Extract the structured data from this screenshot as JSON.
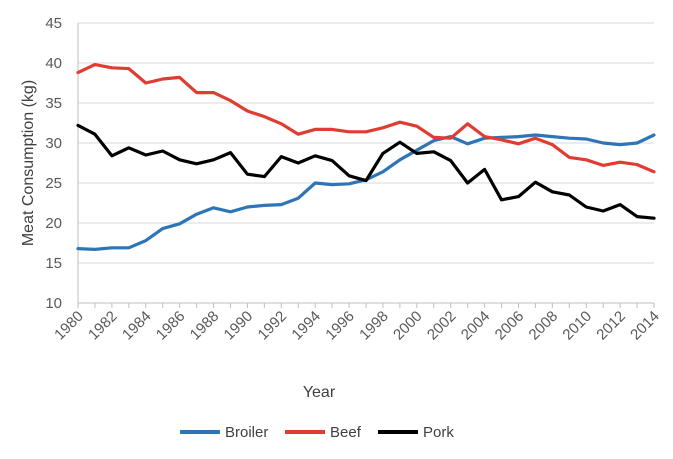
{
  "chart_data": {
    "type": "line",
    "title": "",
    "xlabel": "Year",
    "ylabel": "Meat Consumption (kg)",
    "ylim": [
      10,
      45
    ],
    "yticks": [
      "10",
      "15",
      "20",
      "25",
      "30",
      "35",
      "40",
      "45"
    ],
    "xticks": [
      "1980",
      "1982",
      "1984",
      "1986",
      "1988",
      "1990",
      "1992",
      "1994",
      "1996",
      "1998",
      "2000",
      "2002",
      "2004",
      "2006",
      "2008",
      "2010",
      "2012",
      "2014"
    ],
    "x": [
      1980,
      1981,
      1982,
      1983,
      1984,
      1985,
      1986,
      1987,
      1988,
      1989,
      1990,
      1991,
      1992,
      1993,
      1994,
      1995,
      1996,
      1997,
      1998,
      1999,
      2000,
      2001,
      2002,
      2003,
      2004,
      2005,
      2006,
      2007,
      2008,
      2009,
      2010,
      2011,
      2012,
      2013,
      2014
    ],
    "grid": true,
    "legend_position": "bottom",
    "series": [
      {
        "name": "Broiler",
        "color": "#2e75b6",
        "values": [
          16.8,
          16.7,
          16.9,
          16.9,
          17.8,
          19.3,
          19.9,
          21.1,
          21.9,
          21.4,
          22.0,
          22.2,
          22.3,
          23.1,
          25.0,
          24.8,
          24.9,
          25.4,
          26.4,
          27.9,
          29.1,
          30.3,
          30.8,
          29.9,
          30.6,
          30.7,
          30.8,
          31.0,
          30.8,
          30.6,
          30.5,
          30.0,
          29.8,
          30.0,
          31.0
        ]
      },
      {
        "name": "Beef",
        "color": "#e03c31",
        "values": [
          38.8,
          39.8,
          39.4,
          39.3,
          37.5,
          38.0,
          38.2,
          36.3,
          36.3,
          35.3,
          34.0,
          33.3,
          32.4,
          31.1,
          31.7,
          31.7,
          31.4,
          31.4,
          31.9,
          32.6,
          32.1,
          30.7,
          30.6,
          32.4,
          30.8,
          30.4,
          29.9,
          30.6,
          29.8,
          28.2,
          27.9,
          27.2,
          27.6,
          27.3,
          26.4
        ]
      },
      {
        "name": "Pork",
        "color": "#000000",
        "values": [
          32.2,
          31.1,
          28.4,
          29.4,
          28.5,
          29.0,
          27.9,
          27.4,
          27.9,
          28.8,
          26.1,
          25.8,
          28.3,
          27.5,
          28.4,
          27.8,
          25.9,
          25.3,
          28.7,
          30.1,
          28.7,
          28.9,
          27.8,
          25.0,
          26.7,
          22.9,
          23.3,
          25.1,
          23.9,
          23.5,
          22.0,
          21.5,
          22.3,
          20.8,
          20.6
        ]
      }
    ]
  }
}
